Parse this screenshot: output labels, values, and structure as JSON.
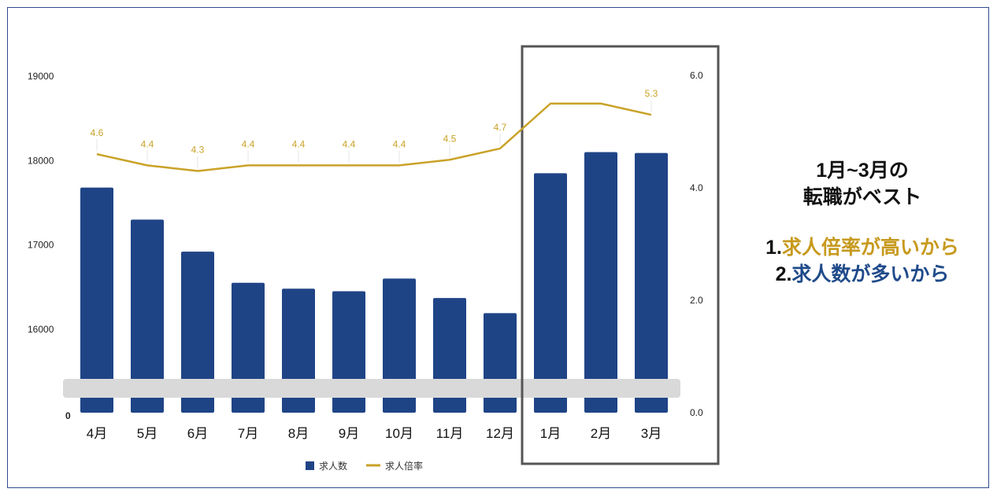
{
  "chart_data": {
    "type": "bar+line",
    "categories": [
      "4月",
      "5月",
      "6月",
      "7月",
      "8月",
      "9月",
      "10月",
      "11月",
      "12月",
      "1月",
      "2月",
      "3月"
    ],
    "series": [
      {
        "name": "求人数",
        "type": "bar",
        "axis": "left",
        "color": "#1f4486",
        "values": [
          17680,
          17300,
          16920,
          16550,
          16480,
          16450,
          16600,
          16370,
          16190,
          17850,
          18100,
          18090
        ]
      },
      {
        "name": "求人倍率",
        "type": "line",
        "axis": "right",
        "color": "#c9a227",
        "values": [
          4.6,
          4.4,
          4.3,
          4.4,
          4.4,
          4.4,
          4.4,
          4.5,
          4.7,
          5.5,
          5.5,
          5.3
        ],
        "labels": [
          "4.6",
          "4.4",
          "4.3",
          "4.4",
          "4.4",
          "4.4",
          "4.4",
          "4.5",
          "4.7",
          "",
          "",
          "5.3"
        ]
      }
    ],
    "left_axis": {
      "ticks": [
        "19000",
        "18000",
        "17000",
        "16000"
      ],
      "tick_values": [
        19000,
        18000,
        17000,
        16000
      ],
      "min": 15000,
      "max": 19000,
      "zero_label": "0",
      "broken": true
    },
    "right_axis": {
      "ticks": [
        "6.0",
        "4.0",
        "2.0",
        "0.0"
      ],
      "tick_values": [
        6,
        4,
        2,
        0
      ],
      "min": 0,
      "max": 6
    },
    "highlight_categories": [
      "1月",
      "2月",
      "3月"
    ],
    "legend": {
      "placement": "bottom"
    }
  },
  "side_panel": {
    "headline_line1": "1月~3月の",
    "headline_line2": "転職がベスト",
    "reason1_num": "1.",
    "reason1_text": "求人倍率が高いから",
    "reason2_num": "2.",
    "reason2_text": "求人数が多いから"
  }
}
